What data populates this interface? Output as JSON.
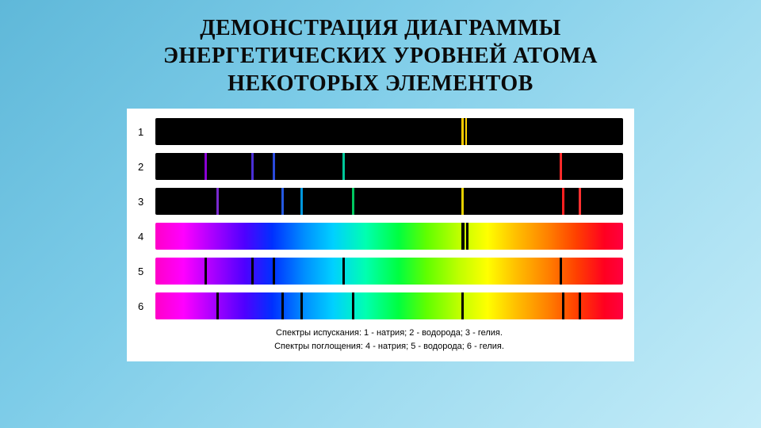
{
  "title_line1": "ДЕМОНСТРАЦИЯ ДИАГРАММЫ",
  "title_line2": "ЭНЕРГЕТИЧЕСКИХ УРОВНЕЙ АТОМА",
  "title_line3": "НЕКОТОРЫХ ЭЛЕМЕНТОВ",
  "caption_line1": "Спектры испускания: 1 - натрия; 2 - водорода; 3 - гелия.",
  "caption_line2": "Спектры поглощения: 4 - натрия; 5 - водорода; 6 - гелия.",
  "rows": [
    {
      "label": "1",
      "kind": "emission",
      "lines": [
        {
          "pos": 65.5,
          "width": 3,
          "color": "#ffcc00"
        },
        {
          "pos": 66.3,
          "width": 2,
          "color": "#ffd500"
        }
      ]
    },
    {
      "label": "2",
      "kind": "emission",
      "lines": [
        {
          "pos": 10.5,
          "width": 3,
          "color": "#8a00d4"
        },
        {
          "pos": 20.5,
          "width": 3,
          "color": "#4a2fd6"
        },
        {
          "pos": 25.0,
          "width": 3,
          "color": "#2a4add"
        },
        {
          "pos": 40.0,
          "width": 3,
          "color": "#00c89a"
        },
        {
          "pos": 86.5,
          "width": 3,
          "color": "#ff2a2a"
        }
      ]
    },
    {
      "label": "3",
      "kind": "emission",
      "lines": [
        {
          "pos": 13.0,
          "width": 3,
          "color": "#7a2ad0"
        },
        {
          "pos": 27.0,
          "width": 3,
          "color": "#2458e0"
        },
        {
          "pos": 31.0,
          "width": 3,
          "color": "#0096dc"
        },
        {
          "pos": 42.0,
          "width": 3,
          "color": "#00c860"
        },
        {
          "pos": 65.5,
          "width": 3,
          "color": "#e6d000"
        },
        {
          "pos": 87.0,
          "width": 3,
          "color": "#ff2020"
        },
        {
          "pos": 90.5,
          "width": 3,
          "color": "#ff3030"
        }
      ]
    },
    {
      "label": "4",
      "kind": "absorption",
      "lines": [
        {
          "pos": 65.5,
          "width": 4,
          "color": "#000000"
        },
        {
          "pos": 66.5,
          "width": 3,
          "color": "#000000"
        }
      ]
    },
    {
      "label": "5",
      "kind": "absorption",
      "lines": [
        {
          "pos": 10.5,
          "width": 3,
          "color": "#000000"
        },
        {
          "pos": 20.5,
          "width": 3,
          "color": "#000000"
        },
        {
          "pos": 25.0,
          "width": 3,
          "color": "#000000"
        },
        {
          "pos": 40.0,
          "width": 3,
          "color": "#000000"
        },
        {
          "pos": 86.5,
          "width": 3,
          "color": "#000000"
        }
      ]
    },
    {
      "label": "6",
      "kind": "absorption",
      "lines": [
        {
          "pos": 13.0,
          "width": 3,
          "color": "#000000"
        },
        {
          "pos": 27.0,
          "width": 3,
          "color": "#000000"
        },
        {
          "pos": 31.0,
          "width": 3,
          "color": "#000000"
        },
        {
          "pos": 42.0,
          "width": 3,
          "color": "#000000"
        },
        {
          "pos": 65.5,
          "width": 3,
          "color": "#000000"
        },
        {
          "pos": 87.0,
          "width": 3,
          "color": "#000000"
        },
        {
          "pos": 90.5,
          "width": 3,
          "color": "#000000"
        }
      ]
    }
  ]
}
